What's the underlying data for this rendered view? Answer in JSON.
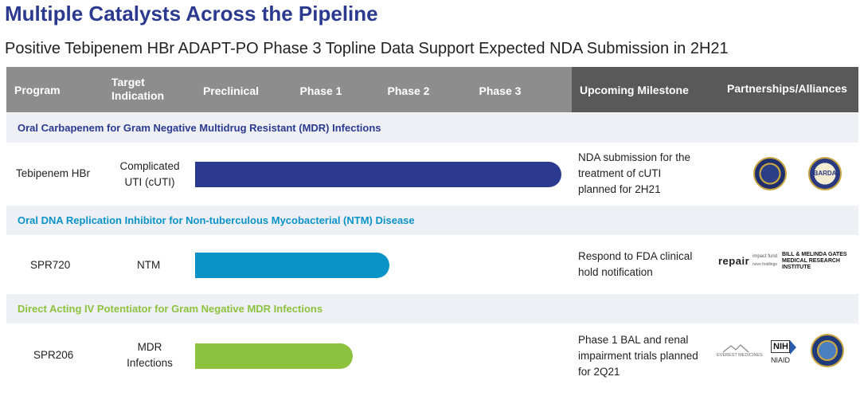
{
  "title": "Multiple Catalysts Across the Pipeline",
  "subtitle": "Positive Tebipenem HBr ADAPT-PO Phase 3 Topline Data Support Expected NDA Submission in 2H21",
  "header": {
    "program": "Program",
    "target_indication": "Target Indication",
    "preclinical": "Preclinical",
    "phase1": "Phase 1",
    "phase2": "Phase 2",
    "phase3": "Phase 3",
    "upcoming_milestone": "Upcoming Milestone",
    "partnerships": "Partnerships/Alliances"
  },
  "colors": {
    "navy": "#2b3a8f",
    "blue": "#0a93c7",
    "green": "#8dc23f"
  },
  "programs": [
    {
      "section": "Oral Carbapenem for Gram Negative Multidrug Resistant (MDR) Infections",
      "name": "Tebipenem HBr",
      "indication_line1": "Complicated",
      "indication_line2": "UTI (cUTI)",
      "milestone_line1": "NDA submission for the",
      "milestone_line2": "treatment of cUTI",
      "milestone_line3": "planned for 2H21",
      "stage_progress": 1.0,
      "partners": [
        "dod-seal-icon",
        "barda-seal-icon"
      ],
      "partner_labels": {
        "barda": "BARDA"
      }
    },
    {
      "section": "Oral DNA Replication Inhibitor for Non-tuberculous Mycobacterial (NTM) Disease",
      "name": "SPR720",
      "indication_line1": "NTM",
      "milestone_line1": "Respond to FDA clinical",
      "milestone_line2": "hold notification",
      "stage_progress": 0.53,
      "partners": [
        "repair-impact-fund-logo",
        "gates-mri-logo"
      ],
      "partner_labels": {
        "repair": "repair",
        "repair_sub1": "impact fund",
        "repair_sub2": "novo holdings",
        "gates_line1": "BILL & MELINDA GATES",
        "gates_line2": "MEDICAL RESEARCH",
        "gates_line3": "INSTITUTE"
      }
    },
    {
      "section": "Direct Acting IV Potentiator for Gram Negative MDR Infections",
      "name": "SPR206",
      "indication_line1": "MDR",
      "indication_line2": "Infections",
      "milestone_line1": "Phase 1 BAL and renal",
      "milestone_line2": "impairment trials planned",
      "milestone_line3": "for 2Q21",
      "stage_progress": 0.43,
      "partners": [
        "everest-medicines-logo",
        "nih-niaid-logo",
        "dod-seal-icon"
      ],
      "partner_labels": {
        "everest": "EVEREST MEDICINES",
        "nih": "NIH",
        "niaid": "NIAID"
      }
    }
  ]
}
